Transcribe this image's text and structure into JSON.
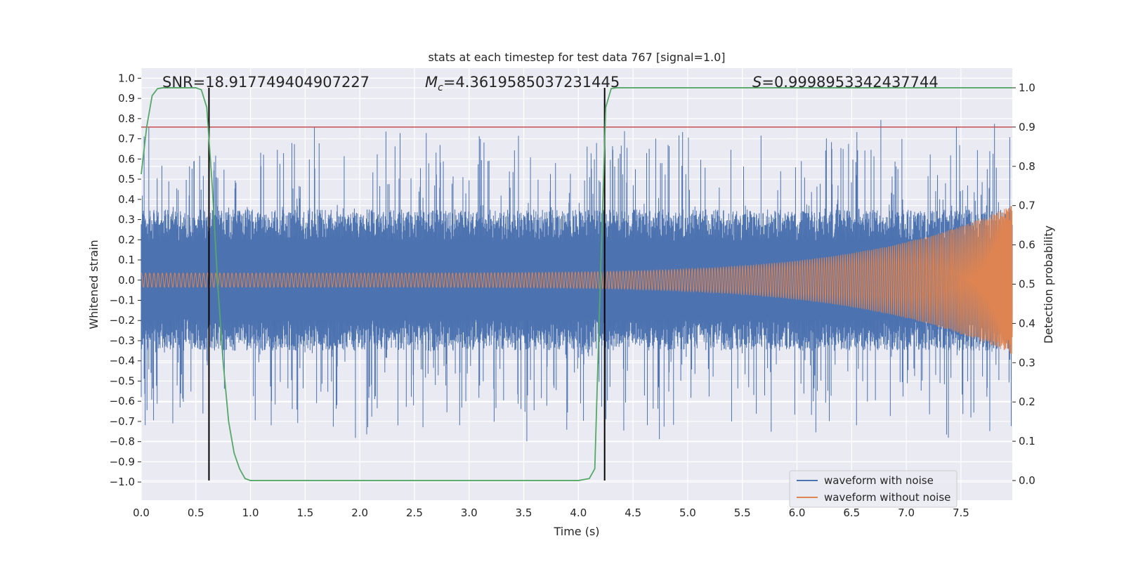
{
  "chart_data": {
    "type": "line",
    "title": "stats at each timestep for test data 767 [signal=1.0]",
    "xlabel": "Time (s)",
    "ylabel": "Whitened strain",
    "ylabel_right": "Detection probability",
    "xlim": [
      0.0,
      7.97
    ],
    "ylim": [
      -1.09,
      1.05
    ],
    "ylim_right": [
      -0.05,
      1.05
    ],
    "x_ticks": [
      "0.0",
      "0.5",
      "1.0",
      "1.5",
      "2.0",
      "2.5",
      "3.0",
      "3.5",
      "4.0",
      "4.5",
      "5.0",
      "5.5",
      "6.0",
      "6.5",
      "7.0",
      "7.5"
    ],
    "y_ticks": [
      "−1.0",
      "−0.9",
      "−0.8",
      "−0.7",
      "−0.6",
      "−0.5",
      "−0.4",
      "−0.3",
      "−0.2",
      "−0.1",
      "0.0",
      "0.1",
      "0.2",
      "0.3",
      "0.4",
      "0.5",
      "0.6",
      "0.7",
      "0.8",
      "0.9",
      "1.0"
    ],
    "y_ticks_right": [
      "0.0",
      "0.1",
      "0.2",
      "0.3",
      "0.4",
      "0.5",
      "0.6",
      "0.7",
      "0.8",
      "0.9",
      "1.0"
    ],
    "annotations": {
      "snr": "SNR=18.917749404907227",
      "mc_symbol": "M",
      "mc_sub": "c",
      "mc_value": "=4.3619585037231445",
      "s_symbol": "S",
      "s_value": "=0.9998953342437744"
    },
    "threshold_right": 0.9,
    "vertical_lines": [
      0.62,
      4.24
    ],
    "series": [
      {
        "name": "waveform with noise",
        "color": "#4c72b0",
        "axis": "left",
        "noise_band": [
          -0.35,
          0.35
        ],
        "peak_range": [
          -1.0,
          0.98
        ]
      },
      {
        "name": "waveform without noise",
        "color": "#dd8452",
        "axis": "left",
        "start_amplitude": 0.035,
        "end_amplitude": 0.37,
        "chirp_end": 7.97
      }
    ],
    "detection_probability": {
      "color": "#55a868",
      "axis": "right",
      "x": [
        0.0,
        0.05,
        0.1,
        0.15,
        0.2,
        0.3,
        0.4,
        0.5,
        0.55,
        0.6,
        0.65,
        0.7,
        0.75,
        0.8,
        0.85,
        0.9,
        0.95,
        1.0,
        1.5,
        2.0,
        2.5,
        3.0,
        3.5,
        4.0,
        4.1,
        4.15,
        4.2,
        4.25,
        4.3,
        4.35,
        5.0,
        6.0,
        7.0,
        7.97
      ],
      "y": [
        0.78,
        0.9,
        0.98,
        0.998,
        1.0,
        1.0,
        1.0,
        1.0,
        0.995,
        0.95,
        0.75,
        0.5,
        0.3,
        0.15,
        0.07,
        0.03,
        0.005,
        0.0,
        0.0,
        0.0,
        0.0,
        0.0,
        0.0,
        0.0,
        0.005,
        0.03,
        0.5,
        0.95,
        0.998,
        1.0,
        1.0,
        1.0,
        1.0,
        1.0
      ]
    },
    "grid": true,
    "legend_position": "lower-right"
  },
  "colors": {
    "axes_bg": "#eaeaf2",
    "grid": "#ffffff",
    "noise": "#4c72b0",
    "clean": "#dd8452",
    "prob": "#55a868",
    "threshold": "#c44e52",
    "vline": "#000000"
  }
}
